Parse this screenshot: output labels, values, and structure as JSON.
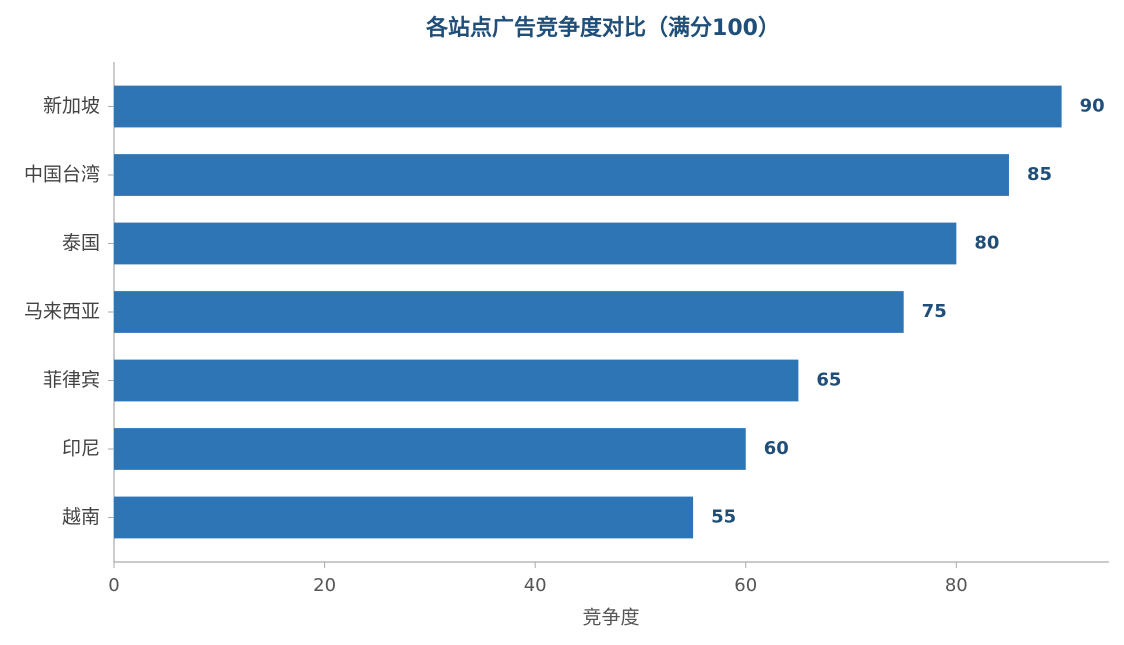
{
  "chart_data": {
    "type": "bar",
    "orientation": "horizontal",
    "title": "各站点广告竞争度对比（满分100）",
    "x_label": "竞争度",
    "categories": [
      "新加坡",
      "中国台湾",
      "泰国",
      "马来西亚",
      "菲律宾",
      "印尼",
      "越南"
    ],
    "values": [
      90,
      85,
      80,
      75,
      65,
      60,
      55
    ],
    "color": "#2e75b6",
    "xlim": [
      0,
      94.5
    ],
    "xticks": [
      0,
      20,
      40,
      60,
      80
    ],
    "grid": false
  }
}
